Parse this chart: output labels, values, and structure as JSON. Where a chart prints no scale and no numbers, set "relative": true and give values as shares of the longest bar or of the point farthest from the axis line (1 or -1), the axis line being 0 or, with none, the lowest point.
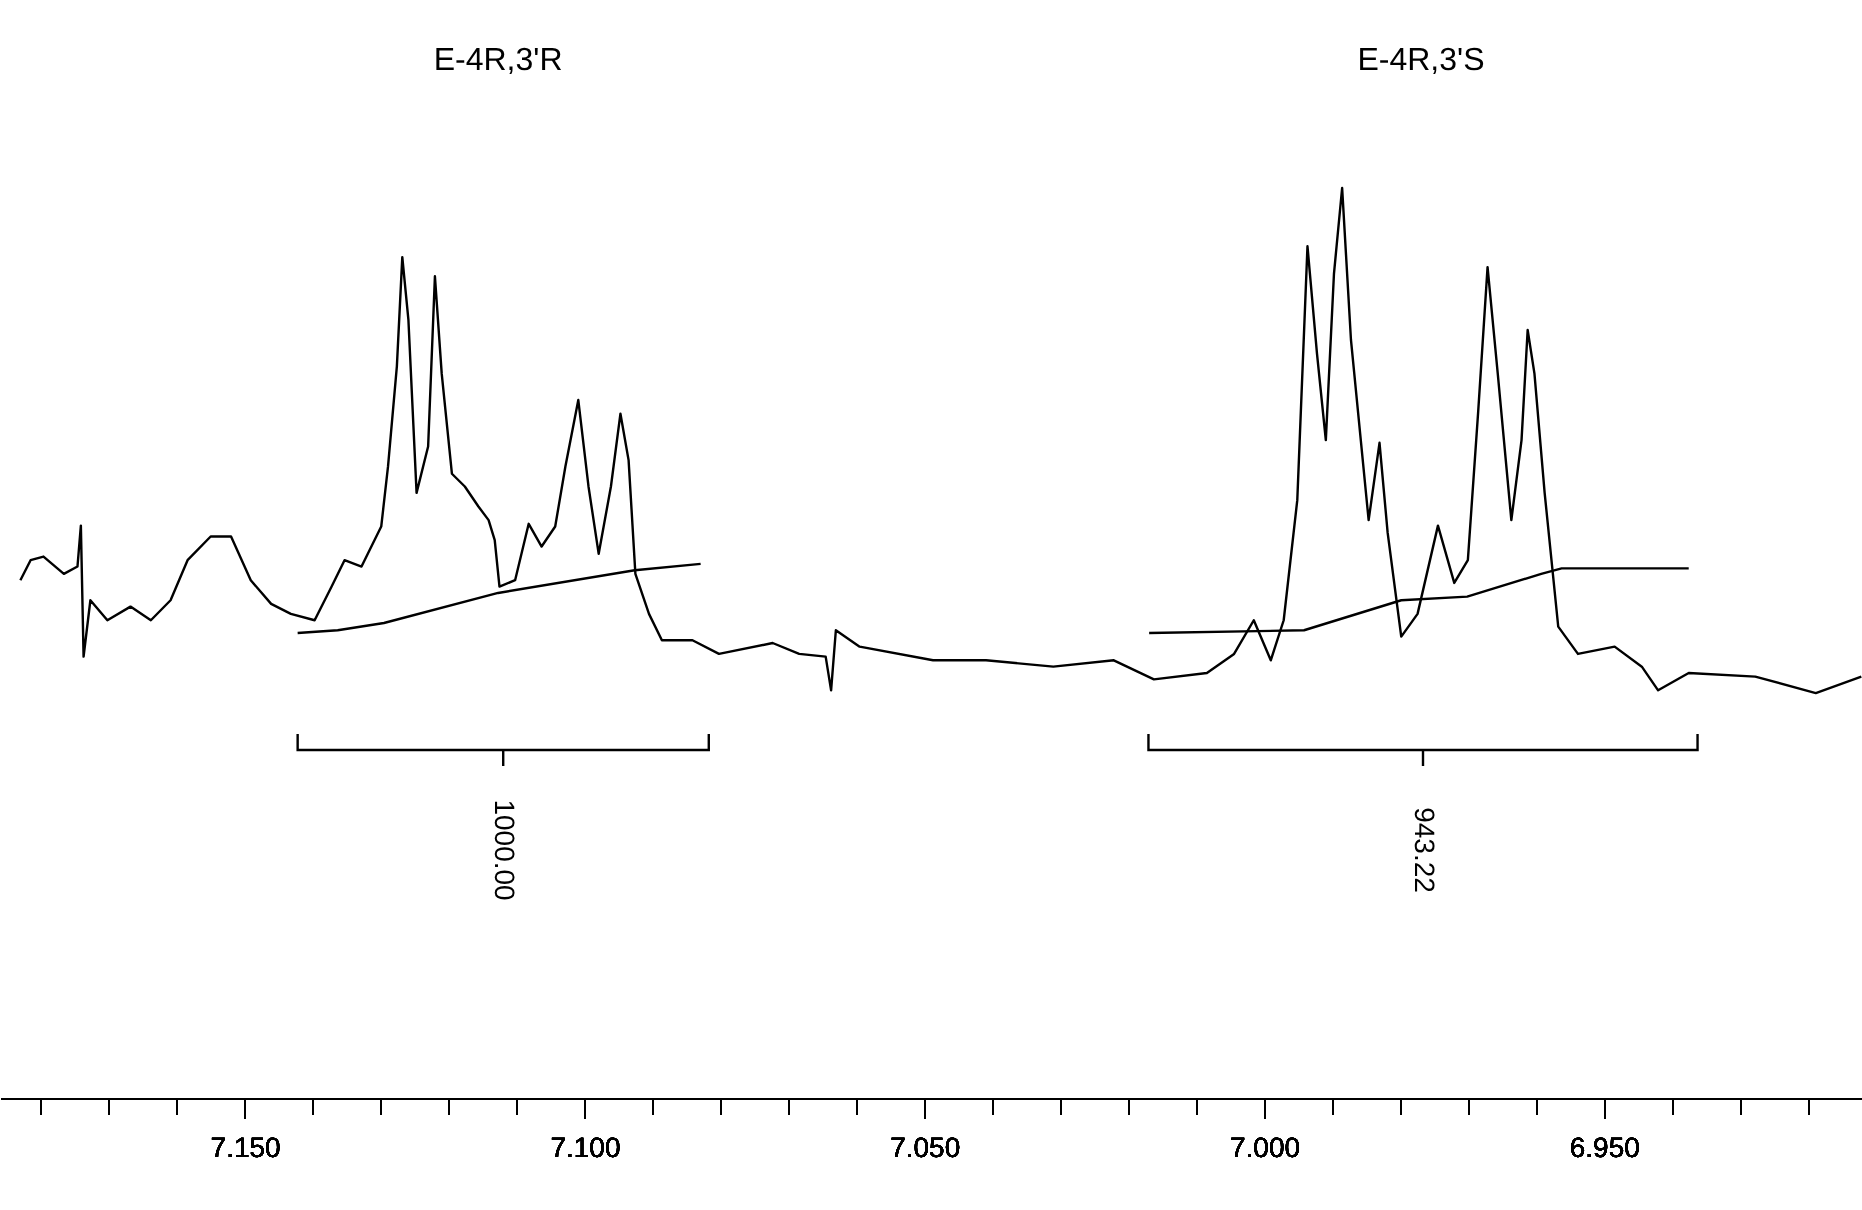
{
  "chart_data": {
    "type": "line",
    "relative": true,
    "xlim": [
      7.186,
      6.912
    ],
    "xticks": [
      {
        "value": 7.18,
        "label": null
      },
      {
        "value": 7.17,
        "label": null
      },
      {
        "value": 7.16,
        "label": null
      },
      {
        "value": 7.15,
        "label": "7.150"
      },
      {
        "value": 7.14,
        "label": null
      },
      {
        "value": 7.13,
        "label": null
      },
      {
        "value": 7.12,
        "label": null
      },
      {
        "value": 7.11,
        "label": null
      },
      {
        "value": 7.1,
        "label": "7.100"
      },
      {
        "value": 7.09,
        "label": null
      },
      {
        "value": 7.08,
        "label": null
      },
      {
        "value": 7.07,
        "label": null
      },
      {
        "value": 7.06,
        "label": null
      },
      {
        "value": 7.05,
        "label": "7.050"
      },
      {
        "value": 7.04,
        "label": null
      },
      {
        "value": 7.03,
        "label": null
      },
      {
        "value": 7.02,
        "label": null
      },
      {
        "value": 7.01,
        "label": null
      },
      {
        "value": 7.0,
        "label": "7.000"
      },
      {
        "value": 6.99,
        "label": null
      },
      {
        "value": 6.98,
        "label": null
      },
      {
        "value": 6.97,
        "label": null
      },
      {
        "value": 6.96,
        "label": null
      },
      {
        "value": 6.95,
        "label": "6.950"
      },
      {
        "value": 6.94,
        "label": null
      },
      {
        "value": 6.93,
        "label": null
      },
      {
        "value": 6.92,
        "label": null
      }
    ],
    "series": [
      {
        "color": "#000000",
        "x": [
          7.183,
          7.1815,
          7.1796,
          7.1766,
          7.1746,
          7.1741,
          7.1737,
          7.1727,
          7.1702,
          7.1668,
          7.1638,
          7.1609,
          7.1584,
          7.155,
          7.152,
          7.1491,
          7.1461,
          7.1432,
          7.1397,
          7.1372,
          7.1353,
          7.1328,
          7.1299,
          7.1289,
          7.1276,
          7.1268,
          7.1259,
          7.1247,
          7.123,
          7.122,
          7.121,
          7.1195,
          7.1176,
          7.1156,
          7.1141,
          7.1132,
          7.1125,
          7.1102,
          7.1082,
          7.1063,
          7.1043,
          7.1028,
          7.1009,
          7.0994,
          7.0979,
          7.0961,
          7.0947,
          7.0935,
          7.0925,
          7.0905,
          7.0886,
          7.0841,
          7.0802,
          7.0723,
          7.0684,
          7.0645,
          7.0637,
          7.063,
          7.0595,
          7.0487,
          7.0409,
          7.031,
          7.0221,
          7.0162,
          7.0084,
          7.0044,
          7.0015,
          6.999,
          6.9971,
          6.9951,
          6.9936,
          6.9922,
          6.9909,
          6.9897,
          6.9885,
          6.9872,
          6.9846,
          6.983,
          6.9818,
          6.9798,
          6.9774,
          6.9744,
          6.972,
          6.97,
          6.9685,
          6.9671,
          6.9656,
          6.9636,
          6.9621,
          6.9612,
          6.9602,
          6.9587,
          6.9567,
          6.9538,
          6.9484,
          6.9444,
          6.942,
          6.9375,
          6.9277,
          6.9188,
          6.9121
        ],
        "values": [
          0.569,
          0.591,
          0.595,
          0.576,
          0.584,
          0.629,
          0.485,
          0.547,
          0.525,
          0.54,
          0.525,
          0.547,
          0.591,
          0.617,
          0.617,
          0.569,
          0.543,
          0.532,
          0.525,
          0.562,
          0.591,
          0.584,
          0.628,
          0.694,
          0.804,
          0.924,
          0.855,
          0.665,
          0.716,
          0.903,
          0.796,
          0.686,
          0.672,
          0.65,
          0.635,
          0.613,
          0.562,
          0.569,
          0.631,
          0.606,
          0.628,
          0.694,
          0.767,
          0.672,
          0.598,
          0.672,
          0.752,
          0.701,
          0.576,
          0.532,
          0.503,
          0.503,
          0.488,
          0.5,
          0.488,
          0.485,
          0.448,
          0.514,
          0.496,
          0.481,
          0.481,
          0.474,
          0.481,
          0.46,
          0.467,
          0.488,
          0.525,
          0.481,
          0.525,
          0.657,
          0.936,
          0.818,
          0.723,
          0.906,
          1,
          0.833,
          0.635,
          0.72,
          0.621,
          0.507,
          0.532,
          0.629,
          0.566,
          0.591,
          0.752,
          0.913,
          0.796,
          0.635,
          0.723,
          0.844,
          0.796,
          0.665,
          0.518,
          0.488,
          0.496,
          0.474,
          0.448,
          0.467,
          0.463,
          0.445,
          0.463
        ]
      },
      {
        "color": "#000000",
        "x": [
          7.1422,
          7.1363,
          7.1295,
          7.1127,
          7.0926,
          7.0829
        ],
        "values": [
          0.511,
          0.514,
          0.522,
          0.555,
          0.58,
          0.587
        ]
      },
      {
        "color": "#000000",
        "x": [
          7.0169,
          6.9941,
          6.9798,
          6.9701,
          6.9592,
          6.9562,
          6.9375
        ],
        "values": [
          0.511,
          0.514,
          0.547,
          0.551,
          0.576,
          0.582,
          0.582
        ]
      }
    ],
    "annotations": [
      "E-4R,3'R",
      "E-4R,3'S",
      "1000.00",
      "943.22"
    ]
  }
}
